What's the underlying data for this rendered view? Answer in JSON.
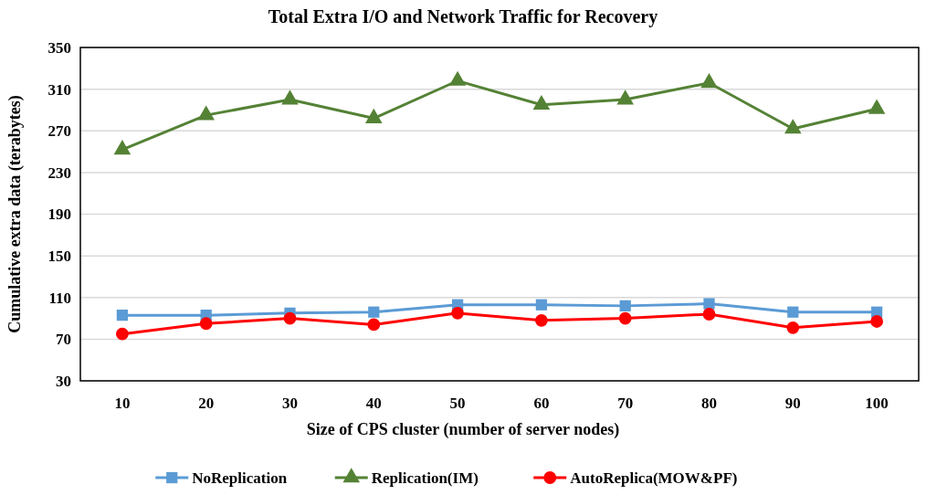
{
  "chart_data": {
    "type": "line",
    "title": "Total Extra I/O and Network Traffic for Recovery",
    "xlabel": "Size of CPS cluster (number of server nodes)",
    "ylabel": "Cumulative extra data (terabytes)",
    "categories": [
      "10",
      "20",
      "30",
      "40",
      "50",
      "60",
      "70",
      "80",
      "90",
      "100"
    ],
    "series": [
      {
        "name": "NoReplication",
        "color": "#5b9bd5",
        "marker": "square",
        "values": [
          93,
          93,
          95,
          96,
          103,
          103,
          102,
          104,
          96,
          96
        ]
      },
      {
        "name": "Replication(IM)",
        "color": "#548235",
        "marker": "triangle",
        "values": [
          252,
          285,
          300,
          282,
          318,
          295,
          300,
          316,
          272,
          291
        ]
      },
      {
        "name": "AutoReplica(MOW&PF)",
        "color": "#ff0000",
        "marker": "circle",
        "values": [
          75,
          85,
          90,
          84,
          95,
          88,
          90,
          94,
          81,
          87
        ]
      }
    ],
    "ylim": [
      30,
      350
    ],
    "yticks": [
      30,
      70,
      110,
      150,
      190,
      230,
      270,
      310,
      350
    ],
    "grid": "y",
    "legend": "bottom"
  }
}
